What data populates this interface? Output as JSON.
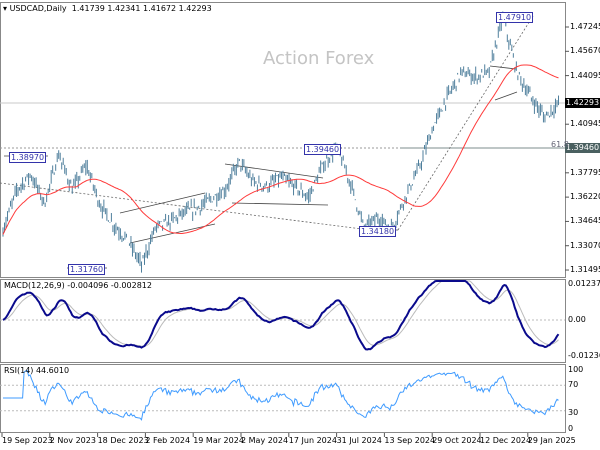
{
  "header": {
    "symbol": "USDCAD,Daily",
    "ohlc": "1.41739 1.42341 1.41672 1.42293"
  },
  "watermark": "Action Forex",
  "price_axis": [
    "1.47245",
    "1.45670",
    "1.44095",
    "1.40945",
    "1.37795",
    "1.36220",
    "1.34645",
    "1.33070",
    "1.31495"
  ],
  "price_tags": {
    "current": "1.42293",
    "level": "1.39460"
  },
  "fib_label": "61.8",
  "annotations": [
    "1.38970",
    "1.31760",
    "1.39460",
    "1.34180",
    "1.47910"
  ],
  "macd": {
    "label": "MACD(12,26,9) -0.004096 -0.002812",
    "axis": [
      "0.012375",
      "0.00",
      "-0.012367"
    ]
  },
  "rsi": {
    "label": "RSI(14) 44.6010",
    "axis": [
      "100",
      "70",
      "30",
      "0"
    ]
  },
  "dates": [
    "19 Sep 2023",
    "2 Nov 2023",
    "18 Dec 2023",
    "2 Feb 2024",
    "19 Mar 2024",
    "2 May 2024",
    "17 Jun 2024",
    "31 Jul 2024",
    "13 Sep 2024",
    "29 Oct 2024",
    "12 Dec 2024",
    "29 Jan 2025"
  ],
  "colors": {
    "bars": "#4f7f9c",
    "ma": "#ff3b3b",
    "macd": "#0a0a8c",
    "signal": "#bbbbbb",
    "rsi": "#3f9bff"
  },
  "chart_data": {
    "type": "line",
    "title": "USDCAD Daily",
    "price_pivots": [
      1.341,
      1.367,
      1.377,
      1.358,
      1.39,
      1.367,
      1.383,
      1.357,
      1.344,
      1.334,
      1.318,
      1.343,
      1.346,
      1.352,
      1.355,
      1.361,
      1.367,
      1.385,
      1.372,
      1.369,
      1.375,
      1.369,
      1.362,
      1.382,
      1.395,
      1.372,
      1.342,
      1.349,
      1.342,
      1.363,
      1.382,
      1.408,
      1.427,
      1.443,
      1.44,
      1.443,
      1.479,
      1.443,
      1.427,
      1.414,
      1.423
    ],
    "ylim": [
      1.31495,
      1.47245
    ]
  }
}
